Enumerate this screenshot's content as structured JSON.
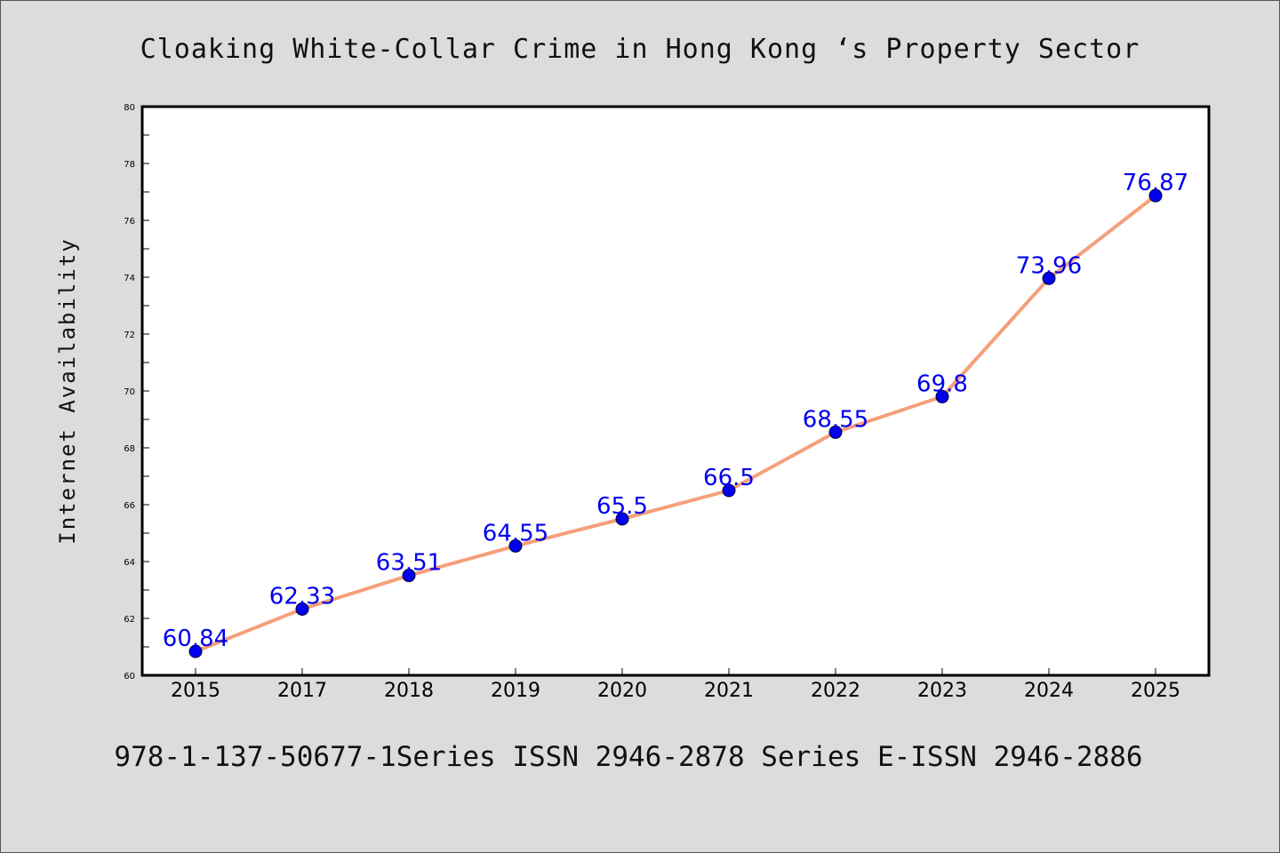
{
  "chart_data": {
    "type": "line",
    "title": "Cloaking White-Collar Crime in Hong Kong ‘s Property Sector",
    "ylabel": "Internet Availability",
    "xlabel": "",
    "categories": [
      "2015",
      "2017",
      "2018",
      "2019",
      "2020",
      "2021",
      "2022",
      "2023",
      "2024",
      "2025"
    ],
    "series": [
      {
        "values": [
          60.84,
          62.33,
          63.51,
          64.55,
          65.5,
          66.5,
          68.55,
          69.8,
          73.96,
          76.87
        ],
        "data_labels": [
          "60.84",
          "62.33",
          "63.51",
          "64.55",
          "65.5",
          "66.5",
          "68.55",
          "69.8",
          "73.96",
          "76.87"
        ]
      }
    ],
    "ylim": [
      60,
      80
    ],
    "yticks": [
      "60",
      "62",
      "64",
      "66",
      "68",
      "70",
      "72",
      "74",
      "76",
      "78",
      "80"
    ],
    "grid": false,
    "legend": "none",
    "colors": {
      "line": "#f4a07a",
      "marker": "#0000ee",
      "label": "#0000ee",
      "axis": "#000000"
    }
  },
  "footer": "978-1-137-50677-1Series ISSN 2946-2878 Series E-ISSN 2946-2886"
}
